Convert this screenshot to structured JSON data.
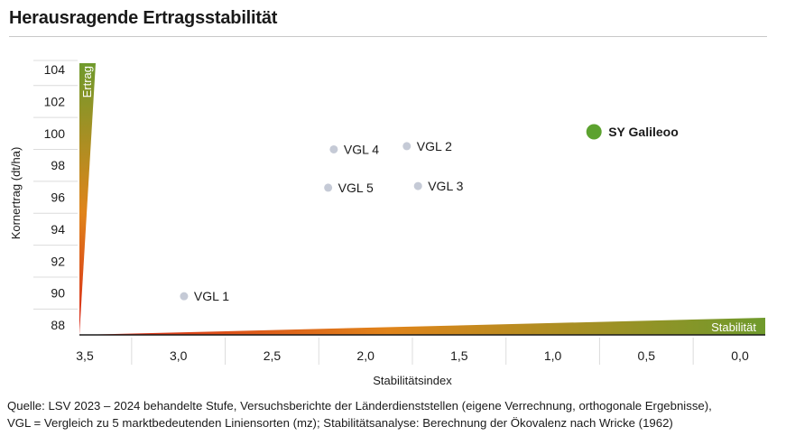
{
  "header": {
    "title": "Herausragende Ertragsstabilität"
  },
  "chart_data": {
    "type": "scatter",
    "title": "Herausragende Ertragsstabilität",
    "xlabel": "Stabilitätsindex",
    "ylabel": "Kornertrag (dt/ha)",
    "x_reversed": true,
    "xlim": [
      3.5,
      0.0
    ],
    "ylim": [
      88,
      104
    ],
    "x_ticks": [
      3.5,
      3.0,
      2.5,
      2.0,
      1.5,
      1.0,
      0.5,
      0.0
    ],
    "x_tick_labels": [
      "3,5",
      "3,0",
      "2,5",
      "2,0",
      "1,5",
      "1,0",
      "0,5",
      "0,0"
    ],
    "y_ticks": [
      88,
      90,
      92,
      94,
      96,
      98,
      100,
      102,
      104
    ],
    "y_tick_labels": [
      "88",
      "90",
      "92",
      "94",
      "96",
      "98",
      "100",
      "102",
      "104"
    ],
    "grid": false,
    "arrows": {
      "y_label": "Ertrag",
      "x_label": "Stabilität"
    },
    "points": [
      {
        "label": "SY Galileoo",
        "x": 0.78,
        "y": 100.1,
        "highlight": true
      },
      {
        "label": "VGL 4",
        "x": 2.17,
        "y": 99.0,
        "highlight": false
      },
      {
        "label": "VGL 2",
        "x": 1.78,
        "y": 99.2,
        "highlight": false
      },
      {
        "label": "VGL 5",
        "x": 2.2,
        "y": 96.6,
        "highlight": false
      },
      {
        "label": "VGL 3",
        "x": 1.72,
        "y": 96.7,
        "highlight": false
      },
      {
        "label": "VGL 1",
        "x": 2.97,
        "y": 89.8,
        "highlight": false
      }
    ],
    "colors": {
      "highlight": "#5ca22f",
      "point": "#c5cad6",
      "gradient_start": "#d8231a",
      "gradient_mid": "#e0841a",
      "gradient_end": "#6f9a2c"
    }
  },
  "footer": {
    "source_line_1": "Quelle: LSV 2023 – 2024 behandelte Stufe, Versuchsberichte der Länderdienststellen (eigene Verrechnung, orthogonale Ergebnisse),",
    "source_line_2": "VGL = Vergleich zu 5 marktbedeutenden Liniensorten (mz); Stabilitätsanalyse: Berechnung der Ökovalenz nach Wricke (1962)"
  }
}
